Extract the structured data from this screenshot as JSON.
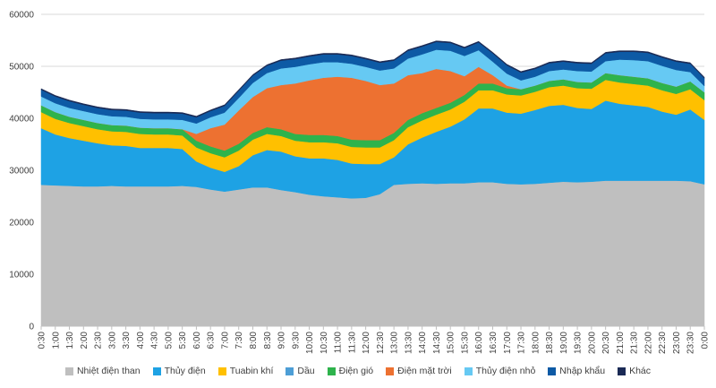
{
  "chart_data": {
    "type": "area",
    "stacked": true,
    "title": "",
    "xlabel": "",
    "ylabel": "",
    "ylim": [
      0,
      60000
    ],
    "yticks": [
      "0",
      "10000",
      "20000",
      "30000",
      "40000",
      "50000",
      "60000"
    ],
    "grid": true,
    "legend_position": "bottom",
    "x": [
      "0:30",
      "1:00",
      "1:30",
      "2:00",
      "2:30",
      "3:00",
      "3:30",
      "4:00",
      "4:30",
      "5:00",
      "5:30",
      "6:00",
      "6:30",
      "7:00",
      "7:30",
      "8:00",
      "8:30",
      "9:00",
      "9:30",
      "10:00",
      "10:30",
      "11:00",
      "11:30",
      "12:00",
      "12:30",
      "13:00",
      "13:30",
      "14:00",
      "14:30",
      "15:00",
      "15:30",
      "16:00",
      "16:30",
      "17:00",
      "17:30",
      "18:00",
      "18:30",
      "19:00",
      "19:30",
      "20:00",
      "20:30",
      "21:00",
      "21:30",
      "22:00",
      "22:30",
      "23:00",
      "23:30",
      "0:00"
    ],
    "series": [
      {
        "name": "Nhiệt điện than",
        "color": "#bfbfbf",
        "values": [
          27200,
          27100,
          27000,
          26900,
          26900,
          27000,
          26900,
          26900,
          26900,
          26900,
          27000,
          26800,
          26300,
          25900,
          26300,
          26700,
          26700,
          26200,
          25800,
          25300,
          25000,
          24800,
          24600,
          24700,
          25400,
          27200,
          27400,
          27500,
          27400,
          27500,
          27500,
          27700,
          27700,
          27400,
          27300,
          27400,
          27600,
          27800,
          27700,
          27800,
          28000,
          28000,
          28000,
          28000,
          28000,
          28000,
          27900,
          27300
        ]
      },
      {
        "name": "Thủy điện",
        "color": "#1ea2e4",
        "values": [
          10900,
          9800,
          9200,
          8800,
          8300,
          7800,
          7800,
          7400,
          7400,
          7400,
          7100,
          4900,
          4200,
          3800,
          4500,
          6200,
          7200,
          7400,
          6900,
          7000,
          7300,
          7200,
          6700,
          6500,
          5800,
          5300,
          7600,
          8800,
          10000,
          10900,
          12300,
          14200,
          14200,
          13700,
          13600,
          14200,
          14800,
          14800,
          14300,
          14000,
          15400,
          14800,
          14500,
          14200,
          13300,
          12700,
          13800,
          12400
        ]
      },
      {
        "name": "Tuabin khí",
        "color": "#ffc000",
        "values": [
          3100,
          3000,
          2900,
          2800,
          2700,
          2700,
          2700,
          2700,
          2600,
          2600,
          2600,
          2700,
          2800,
          2800,
          3000,
          3000,
          3100,
          3000,
          3000,
          3100,
          3100,
          3200,
          3200,
          3200,
          3200,
          3300,
          3300,
          3300,
          3300,
          3300,
          3400,
          3500,
          3500,
          3500,
          3500,
          3500,
          3600,
          3700,
          3800,
          3900,
          4000,
          4100,
          4100,
          4100,
          4100,
          4000,
          3900,
          3800
        ]
      },
      {
        "name": "Dầu",
        "color": "#4d9ed6",
        "values": [
          0,
          0,
          0,
          0,
          0,
          0,
          0,
          0,
          0,
          0,
          0,
          0,
          0,
          0,
          0,
          0,
          0,
          0,
          0,
          0,
          0,
          0,
          0,
          0,
          0,
          0,
          0,
          0,
          0,
          0,
          0,
          0,
          0,
          0,
          0,
          0,
          0,
          0,
          0,
          0,
          0,
          0,
          0,
          0,
          0,
          0,
          0,
          0
        ]
      },
      {
        "name": "Điện gió",
        "color": "#2eb34c",
        "values": [
          1300,
          1300,
          1200,
          1200,
          1200,
          1200,
          1200,
          1200,
          1200,
          1200,
          1200,
          1300,
          1300,
          1300,
          1300,
          1300,
          1300,
          1300,
          1300,
          1400,
          1400,
          1400,
          1400,
          1400,
          1400,
          1400,
          1400,
          1400,
          1300,
          1300,
          1300,
          1300,
          1300,
          1200,
          1200,
          1200,
          1200,
          1200,
          1200,
          1200,
          1300,
          1400,
          1400,
          1400,
          1400,
          1400,
          1500,
          1500
        ]
      },
      {
        "name": "Điện mặt trời",
        "color": "#ed7131",
        "values": [
          0,
          0,
          0,
          0,
          0,
          0,
          0,
          0,
          0,
          0,
          0,
          1300,
          3500,
          5000,
          6400,
          6900,
          7500,
          8500,
          9700,
          10500,
          11000,
          11400,
          11900,
          11400,
          10600,
          9500,
          8600,
          7700,
          7500,
          6100,
          3600,
          3200,
          1600,
          500,
          0,
          0,
          0,
          0,
          0,
          0,
          0,
          0,
          0,
          0,
          0,
          0,
          0,
          0
        ]
      },
      {
        "name": "Thủy điện nhỏ",
        "color": "#66c9f3",
        "values": [
          1700,
          1700,
          1700,
          1700,
          1700,
          1700,
          1700,
          1700,
          1700,
          1700,
          1800,
          2000,
          2100,
          2300,
          2400,
          2700,
          2900,
          3200,
          3200,
          3100,
          3000,
          2800,
          2700,
          2700,
          2800,
          2900,
          3200,
          3600,
          3700,
          3900,
          3900,
          3200,
          2600,
          2300,
          1700,
          1700,
          1900,
          1900,
          2100,
          2100,
          2300,
          3000,
          3200,
          3300,
          3300,
          3200,
          1800,
          1200
        ]
      },
      {
        "name": "Nhập khẩu",
        "color": "#0d5aa5",
        "values": [
          1300,
          1300,
          1300,
          1200,
          1200,
          1200,
          1200,
          1200,
          1200,
          1200,
          1200,
          1200,
          1200,
          1300,
          1400,
          1400,
          1400,
          1500,
          1500,
          1500,
          1500,
          1500,
          1500,
          1500,
          1500,
          1500,
          1500,
          1500,
          1500,
          1500,
          1500,
          1500,
          1600,
          1600,
          1500,
          1500,
          1500,
          1500,
          1500,
          1500,
          1500,
          1500,
          1600,
          1600,
          1600,
          1600,
          1600,
          1500
        ]
      },
      {
        "name": "Khác",
        "color": "#1a2a55",
        "values": [
          200,
          200,
          200,
          200,
          200,
          200,
          200,
          200,
          200,
          200,
          200,
          200,
          200,
          200,
          200,
          200,
          200,
          200,
          200,
          200,
          200,
          200,
          200,
          200,
          200,
          200,
          200,
          200,
          200,
          200,
          200,
          200,
          200,
          200,
          200,
          200,
          200,
          200,
          200,
          200,
          200,
          200,
          200,
          200,
          200,
          200,
          200,
          200
        ]
      }
    ]
  }
}
